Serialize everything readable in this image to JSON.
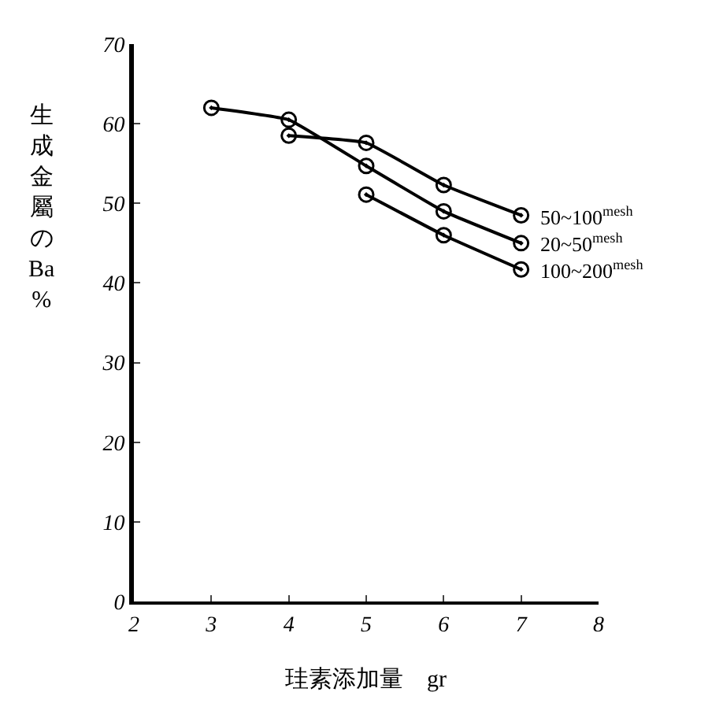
{
  "chart_data": {
    "type": "line",
    "xlabel": "珪素添加量　gr",
    "ylabel": "生成金屬のBa%",
    "xlim": [
      2,
      8
    ],
    "xticks": [
      2,
      3,
      4,
      5,
      6,
      7,
      8
    ],
    "ylim": [
      0,
      70
    ],
    "yticks": [
      0,
      10,
      20,
      30,
      40,
      50,
      60,
      70
    ],
    "marker": "circle",
    "line_style": "solid",
    "series": [
      {
        "name": "50~100$^{mesh}$",
        "color": "#000000",
        "x": [
          4,
          5,
          6,
          7
        ],
        "values": [
          58.5,
          57.6,
          52.3,
          48.5
        ]
      },
      {
        "name": "20~50$^{mesh}$",
        "color": "#000000",
        "x": [
          3,
          4,
          5,
          6,
          7
        ],
        "values": [
          62,
          60.5,
          54.7,
          49,
          45
        ]
      },
      {
        "name": "100~200$^{mesh}$",
        "color": "#000000",
        "x": [
          5,
          6,
          7
        ],
        "values": [
          51.1,
          46,
          41.7
        ]
      }
    ]
  }
}
